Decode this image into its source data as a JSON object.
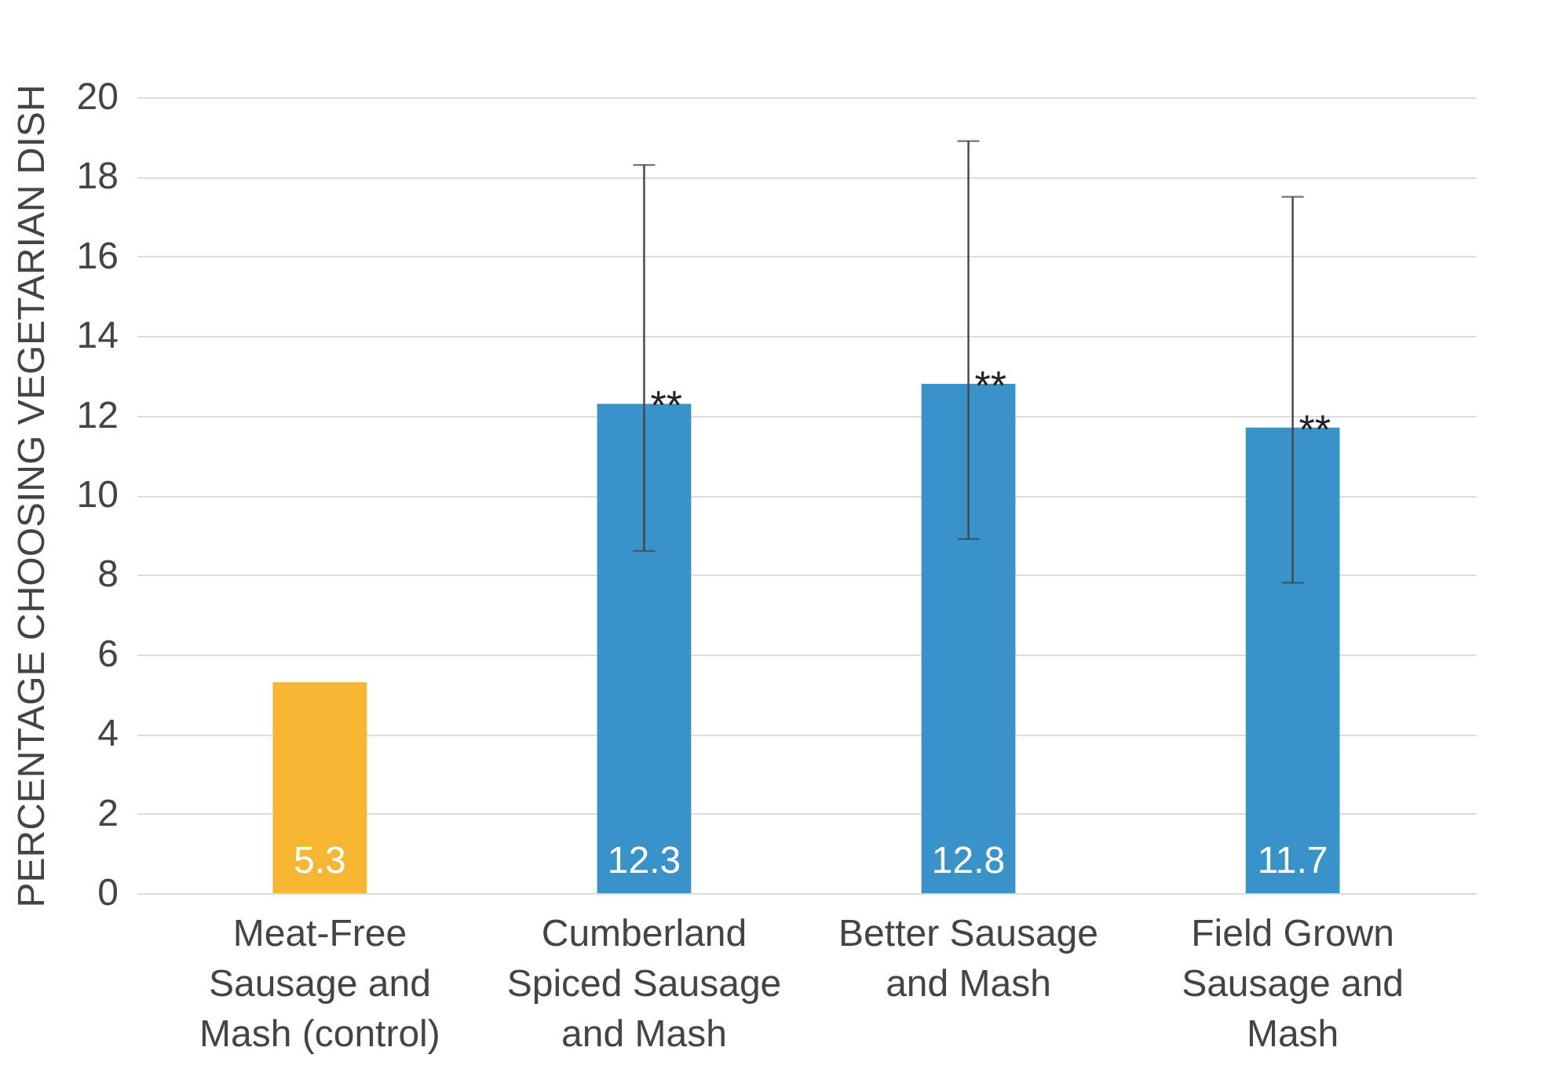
{
  "chart_data": {
    "type": "bar",
    "ylabel": "PERCENTAGE CHOOSING VEGETARIAN DISH",
    "categories": [
      "Meat-Free Sausage and Mash (control)",
      "Cumberland Spiced Sausage and Mash",
      "Better Sausage and Mash",
      "Field Grown Sausage and Mash"
    ],
    "values": [
      5.3,
      12.3,
      12.8,
      11.7
    ],
    "colors": [
      "#f5b731",
      "#3a93c8",
      "#3a93c8",
      "#3a93c8"
    ],
    "errors": [
      null,
      [
        8.6,
        18.3
      ],
      [
        8.9,
        18.9
      ],
      [
        7.8,
        17.5
      ]
    ],
    "data_labels": true,
    "annotations": [
      {
        "text": "**",
        "x": "Cumberland Spiced Sausage and Mash",
        "y": 12.3
      },
      {
        "text": "**",
        "x": "Better Sausage and Mash",
        "y": 12.8
      },
      {
        "text": "**",
        "x": "Field Grown Sausage and Mash",
        "y": 11.7
      }
    ],
    "ylim": [
      0,
      20
    ],
    "yticks": [
      0,
      2,
      4,
      6,
      8,
      10,
      12,
      14,
      16,
      18,
      20
    ],
    "grid": "y"
  }
}
